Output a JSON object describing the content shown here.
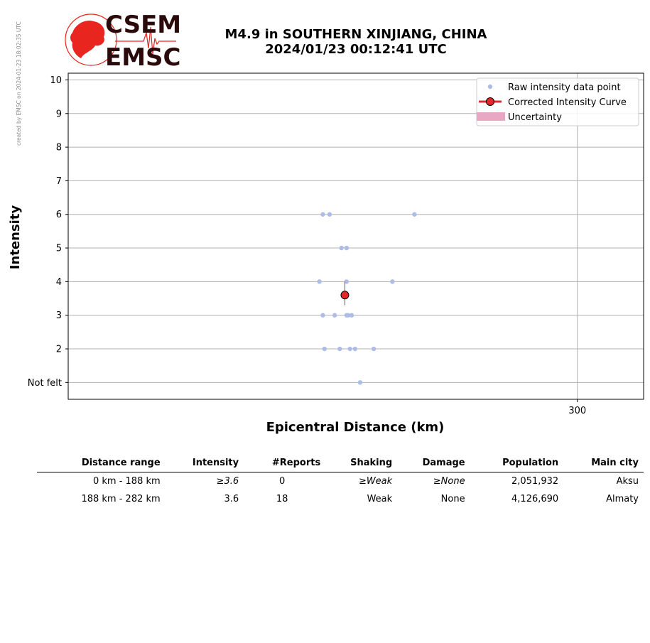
{
  "side_note": "created by EMSC on 2024-01-23 18:02:35 UTC",
  "logo": {
    "top": "CSEM",
    "bottom": "EMSC",
    "accent": "#e8251f",
    "text_color": "#2a0a0a"
  },
  "header": {
    "title_line1": "M4.9 in SOUTHERN XINJIANG, CHINA",
    "title_line2": "2024/01/23 00:12:41 UTC"
  },
  "colors": {
    "raw_points": "#aebde8",
    "corrected": "#e8252b",
    "uncertainty": "#e8a8c4",
    "grid": "#b0b0b0"
  },
  "chart_data": {
    "type": "scatter",
    "xlabel": "Epicentral Distance (km)",
    "ylabel": "Intensity",
    "xlim": [
      0,
      339
    ],
    "ylim": [
      0.5,
      10.2
    ],
    "x_ticks": [
      300
    ],
    "y_ticks": [
      {
        "value": 1,
        "label": "Not felt"
      },
      {
        "value": 2,
        "label": "2"
      },
      {
        "value": 3,
        "label": "3"
      },
      {
        "value": 4,
        "label": "4"
      },
      {
        "value": 5,
        "label": "5"
      },
      {
        "value": 6,
        "label": "6"
      },
      {
        "value": 7,
        "label": "7"
      },
      {
        "value": 8,
        "label": "8"
      },
      {
        "value": 9,
        "label": "9"
      },
      {
        "value": 10,
        "label": "10"
      }
    ],
    "grid": true,
    "legend_position": "top-right",
    "legend": [
      "Raw intensity data point",
      "Corrected Intensity Curve",
      "Uncertainty"
    ],
    "series": [
      {
        "name": "Raw intensity data point",
        "points": [
          [
            150,
            6
          ],
          [
            154,
            6
          ],
          [
            204,
            6
          ],
          [
            161,
            5
          ],
          [
            164,
            5
          ],
          [
            148,
            4
          ],
          [
            164,
            4
          ],
          [
            191,
            4
          ],
          [
            150,
            3
          ],
          [
            157,
            3
          ],
          [
            164,
            3
          ],
          [
            165,
            3
          ],
          [
            167,
            3
          ],
          [
            151,
            2
          ],
          [
            160,
            2
          ],
          [
            166,
            2
          ],
          [
            169,
            2
          ],
          [
            180,
            2
          ],
          [
            172,
            1
          ]
        ]
      },
      {
        "name": "Corrected Intensity Curve",
        "points": [
          [
            163,
            3.6
          ]
        ],
        "uncertainty": [
          3.3,
          4.0
        ]
      }
    ]
  },
  "table": {
    "headers": [
      "Distance range",
      "Intensity",
      "#Reports",
      "Shaking",
      "Damage",
      "Population",
      "Main city"
    ],
    "rows": [
      {
        "range": "0 km -  188 km",
        "intensity": "≥3.6",
        "reports": "0",
        "shaking": "≥Weak",
        "damage": "≥None",
        "population": "2,051,932",
        "city": "Aksu"
      },
      {
        "range": "188 km -  282 km",
        "intensity": "3.6",
        "reports": "18",
        "shaking": "Weak",
        "damage": "None",
        "population": "4,126,690",
        "city": "Almaty"
      }
    ]
  }
}
